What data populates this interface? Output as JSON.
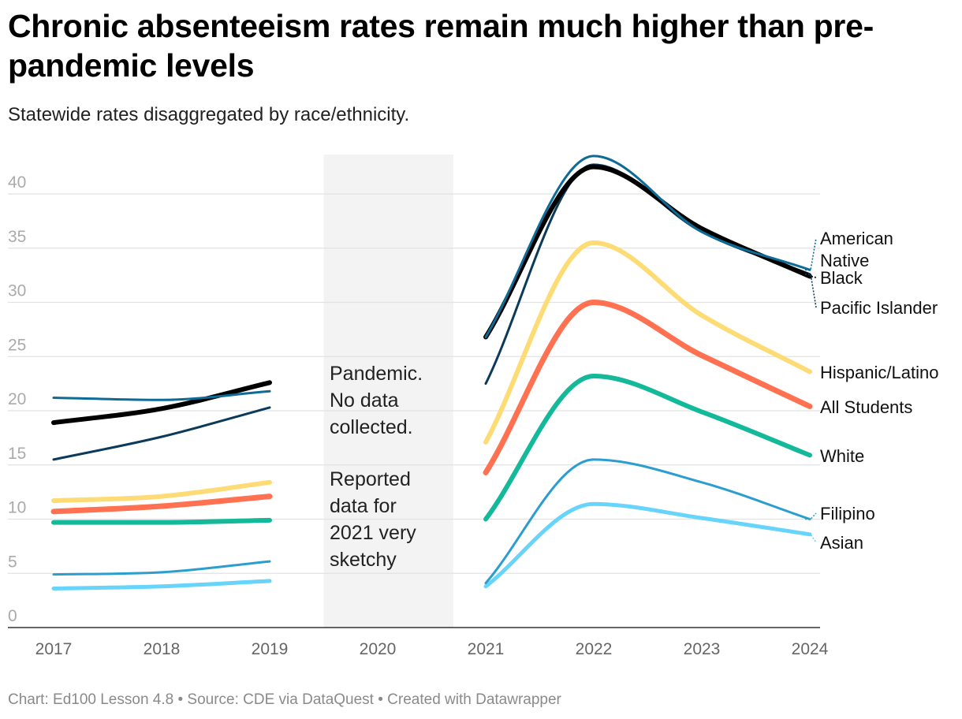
{
  "header": {
    "title": "Chronic absenteeism rates remain much higher than pre-pandemic levels",
    "subtitle": "Statewide rates disaggregated by race/ethnicity."
  },
  "footer": {
    "credit": "Chart: Ed100 Lesson 4.8 • Source: CDE via DataQuest • Created with Datawrapper"
  },
  "annotations": {
    "pandemic": [
      "Pandemic.",
      "No data",
      "collected."
    ],
    "reported": [
      "Reported",
      "data for",
      "2021 very",
      "sketchy"
    ]
  },
  "chart_data": {
    "type": "line",
    "title": "Chronic absenteeism rates remain much higher than pre-pandemic levels",
    "subtitle": "Statewide rates disaggregated by race/ethnicity.",
    "xlabel": "",
    "ylabel": "",
    "x": [
      2017,
      2018,
      2019,
      2020,
      2021,
      2022,
      2023,
      2024
    ],
    "ylim": [
      0,
      43.5
    ],
    "yticks": [
      0,
      5,
      10,
      15,
      20,
      25,
      30,
      35,
      40
    ],
    "grid": true,
    "shaded_region": {
      "from": 2019.5,
      "to": 2020.7,
      "color": "#f3f3f3"
    },
    "series": [
      {
        "name": "American Native",
        "color": "#0d6b96",
        "width": 3,
        "values": [
          21.2,
          21.0,
          21.8,
          null,
          26.8,
          43.5,
          36.5,
          33.0
        ]
      },
      {
        "name": "Black",
        "color": "#000000",
        "width": 6,
        "values": [
          18.9,
          20.2,
          22.6,
          null,
          26.8,
          42.5,
          36.8,
          32.4
        ]
      },
      {
        "name": "Pacific Islander",
        "color": "#0b3a5a",
        "width": 3,
        "values": [
          15.5,
          17.6,
          20.3,
          null,
          22.5,
          42.7,
          36.5,
          32.6
        ]
      },
      {
        "name": "Hispanic/Latino",
        "color": "#fddb75",
        "width": 6,
        "values": [
          11.7,
          12.1,
          13.4,
          null,
          17.1,
          35.5,
          28.8,
          23.6
        ]
      },
      {
        "name": "All Students",
        "color": "#ff7151",
        "width": 7,
        "values": [
          10.7,
          11.2,
          12.1,
          null,
          14.3,
          30.0,
          25.1,
          20.4
        ]
      },
      {
        "name": "White",
        "color": "#14b99a",
        "width": 6,
        "values": [
          9.7,
          9.7,
          9.9,
          null,
          10.0,
          23.2,
          19.9,
          15.9
        ]
      },
      {
        "name": "Filipino",
        "color": "#2b9ecf",
        "width": 3,
        "values": [
          4.9,
          5.1,
          6.1,
          null,
          4.1,
          15.5,
          13.4,
          10.0
        ]
      },
      {
        "name": "Asian",
        "color": "#66d4fb",
        "width": 5,
        "values": [
          3.6,
          3.8,
          4.3,
          null,
          3.8,
          11.4,
          10.1,
          8.6
        ]
      }
    ],
    "end_labels": [
      {
        "text": "American",
        "series": "American Native",
        "connector": true
      },
      {
        "text": "Native",
        "series": "American Native",
        "connector": false
      },
      {
        "text": "Black",
        "series": "Black",
        "connector": true
      },
      {
        "text": "Pacific Islander",
        "series": "Pacific Islander",
        "connector": true
      },
      {
        "text": "Hispanic/Latino",
        "series": "Hispanic/Latino",
        "connector": false
      },
      {
        "text": "All Students",
        "series": "All Students",
        "connector": false
      },
      {
        "text": "White",
        "series": "White",
        "connector": false
      },
      {
        "text": "Filipino",
        "series": "Filipino",
        "connector": true
      },
      {
        "text": "Asian",
        "series": "Asian",
        "connector": true
      }
    ]
  }
}
